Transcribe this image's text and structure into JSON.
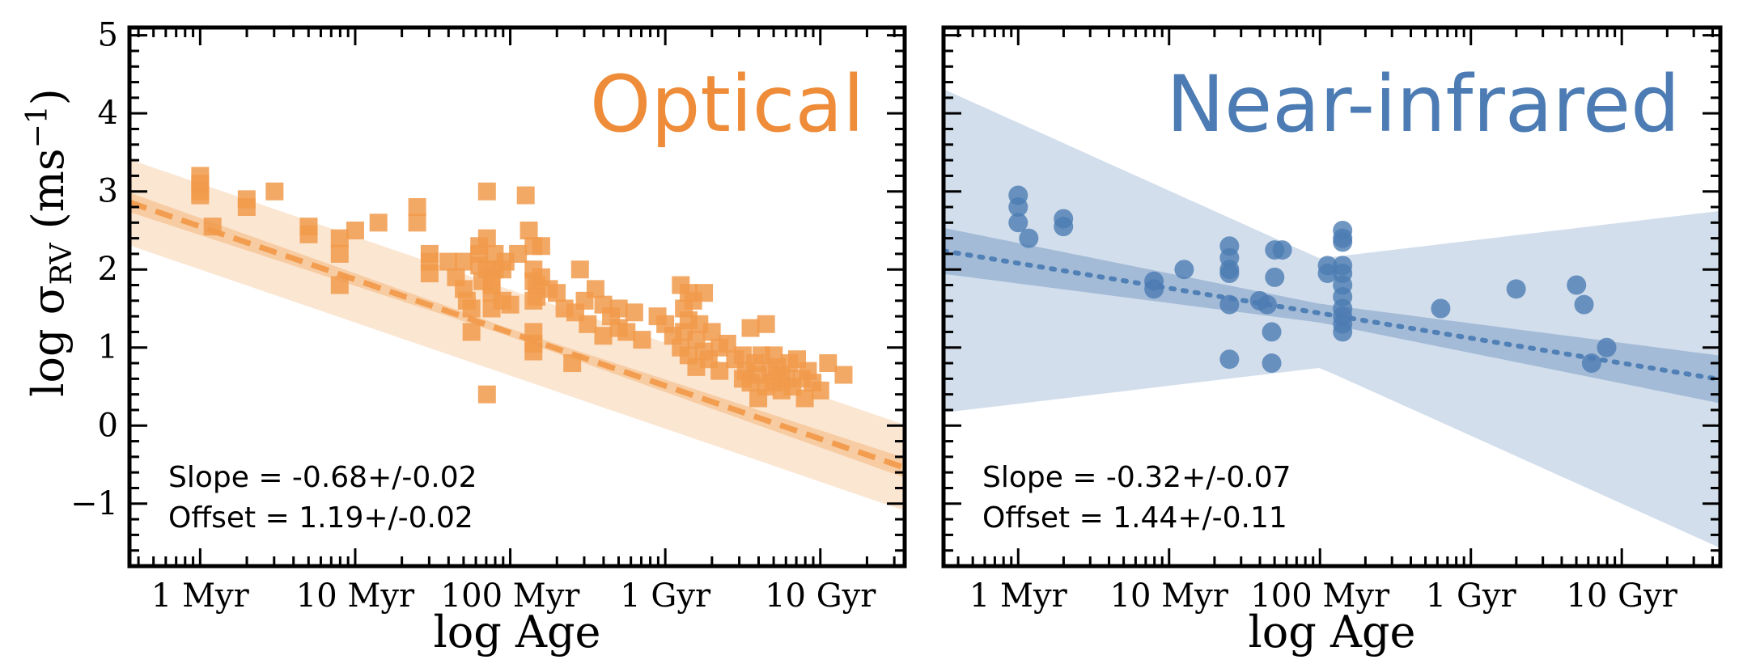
{
  "figure": {
    "ylabel_text": "log σ",
    "ylabel_sub": "RV",
    "ylabel_unit_open": " (ms",
    "ylabel_sup": "−1",
    "ylabel_unit_close": ")"
  },
  "chart_data": [
    {
      "type": "scatter",
      "title": "Optical",
      "title_color": "#EE8C3A",
      "xlabel": "log Age",
      "ylabel": "log σRV (ms−1)",
      "xscale": "log",
      "x_unit": "yr",
      "xlim": [
        350000,
        35000000000
      ],
      "ylim": [
        -1.8,
        5.1
      ],
      "x_ticks": [
        {
          "value": 1000000,
          "label": "1 Myr"
        },
        {
          "value": 10000000,
          "label": "10 Myr"
        },
        {
          "value": 100000000,
          "label": "100 Myr"
        },
        {
          "value": 1000000000,
          "label": "1 Gyr"
        },
        {
          "value": 10000000000,
          "label": "10 Gyr"
        }
      ],
      "y_ticks": [
        {
          "value": -1,
          "label": "−1"
        },
        {
          "value": 0,
          "label": "0"
        },
        {
          "value": 1,
          "label": "1"
        },
        {
          "value": 2,
          "label": "2"
        },
        {
          "value": 3,
          "label": "3"
        },
        {
          "value": 4,
          "label": "4"
        },
        {
          "value": 5,
          "label": "5"
        }
      ],
      "marker": "square",
      "color": "#F19A4B",
      "fit": {
        "slope": -0.68,
        "offset": 1.19,
        "linestyle": "dashed",
        "pivot_log_age": 8.0,
        "inner_band_halfwidth_at_pivot": 0.05,
        "inner_band_slope_spread": 0.03,
        "outer_band_halfwidth": 0.55
      },
      "annotation": {
        "slope_text": "Slope = -0.68+/-0.02",
        "offset_text": "Offset = 1.19+/-0.02"
      },
      "series": [
        {
          "x_log": [
            6.0,
            6.0,
            6.0,
            6.0,
            6.08,
            6.3,
            6.3,
            6.48,
            6.7,
            6.7,
            6.9,
            6.9,
            6.9,
            7.0,
            7.15,
            7.4,
            7.4,
            7.48,
            7.48,
            7.48,
            7.6,
            7.65,
            7.7,
            7.7,
            7.72,
            7.75,
            7.75,
            7.8,
            7.8,
            7.8,
            7.82,
            7.85,
            7.85,
            7.85,
            7.85,
            7.88,
            7.88,
            7.88,
            7.88,
            7.9,
            7.9,
            7.95,
            7.95,
            7.97,
            8.0,
            8.05,
            8.1,
            8.12,
            8.15,
            8.15,
            8.15,
            8.15,
            8.15,
            8.15,
            8.15,
            8.17,
            8.17,
            8.2,
            8.2,
            8.25,
            8.3,
            8.35,
            8.4,
            8.42,
            8.45,
            8.48,
            8.5,
            8.55,
            8.6,
            8.6,
            8.65,
            8.7,
            8.7,
            8.75,
            8.8,
            8.85,
            8.95,
            9.0,
            9.05,
            9.1,
            9.1,
            9.12,
            9.12,
            9.15,
            9.15,
            9.15,
            9.18,
            9.2,
            9.2,
            9.22,
            9.25,
            9.25,
            9.28,
            9.3,
            9.35,
            9.35,
            9.4,
            9.45,
            9.5,
            9.5,
            9.52,
            9.55,
            9.55,
            9.58,
            9.6,
            9.6,
            9.62,
            9.65,
            9.65,
            9.68,
            9.7,
            9.7,
            9.72,
            9.75,
            9.75,
            9.78,
            9.8,
            9.82,
            9.85,
            9.88,
            9.9,
            9.92,
            9.95,
            10.0,
            10.05,
            10.15
          ],
          "y": [
            3.2,
            3.1,
            3.0,
            2.95,
            2.55,
            2.9,
            2.8,
            3.0,
            2.55,
            2.45,
            2.4,
            2.2,
            1.8,
            2.5,
            2.6,
            2.8,
            2.6,
            2.2,
            2.1,
            1.95,
            2.1,
            1.9,
            2.1,
            1.75,
            1.6,
            1.5,
            1.2,
            2.2,
            2.3,
            2.05,
            1.85,
            3.0,
            2.4,
            2.0,
            0.4,
            1.9,
            1.8,
            1.7,
            1.5,
            2.2,
            2.0,
            2.0,
            1.6,
            2.1,
            1.55,
            2.2,
            2.95,
            2.5,
            2.3,
            2.0,
            1.85,
            1.6,
            1.2,
            0.95,
            1.05,
            1.8,
            1.65,
            2.3,
            1.9,
            1.75,
            1.7,
            1.5,
            0.8,
            1.45,
            2.0,
            1.6,
            1.3,
            1.75,
            1.15,
            1.55,
            1.4,
            1.5,
            1.25,
            1.2,
            1.45,
            1.1,
            1.4,
            1.3,
            1.15,
            1.8,
            1.0,
            1.5,
            1.2,
            1.7,
            1.35,
            0.9,
            1.6,
            1.1,
            0.75,
            1.3,
            1.7,
            0.95,
            0.85,
            1.2,
            1.0,
            0.7,
            1.05,
            0.85,
            0.6,
            0.9,
            0.7,
            1.25,
            0.55,
            0.8,
            0.35,
            0.65,
            0.9,
            1.3,
            0.5,
            0.7,
            0.55,
            0.9,
            0.75,
            0.45,
            0.65,
            0.6,
            0.8,
            0.5,
            0.85,
            0.6,
            0.35,
            0.7,
            0.55,
            0.45,
            0.8,
            0.65,
            0.6,
            0.75
          ]
        }
      ]
    },
    {
      "type": "scatter",
      "title": "Near-infrared",
      "title_color": "#4C7CB3",
      "xlabel": "log Age",
      "ylabel": "",
      "xscale": "log",
      "x_unit": "yr",
      "xlim": [
        320000,
        45000000000
      ],
      "ylim": [
        -1.8,
        5.1
      ],
      "x_ticks": [
        {
          "value": 1000000,
          "label": "1 Myr"
        },
        {
          "value": 10000000,
          "label": "10 Myr"
        },
        {
          "value": 100000000,
          "label": "100 Myr"
        },
        {
          "value": 1000000000,
          "label": "1 Gyr"
        },
        {
          "value": 10000000000,
          "label": "10 Gyr"
        }
      ],
      "y_ticks": [
        {
          "value": -1,
          "label": ""
        },
        {
          "value": 0,
          "label": ""
        },
        {
          "value": 1,
          "label": ""
        },
        {
          "value": 2,
          "label": ""
        },
        {
          "value": 3,
          "label": ""
        },
        {
          "value": 4,
          "label": ""
        },
        {
          "value": 5,
          "label": ""
        }
      ],
      "marker": "circle",
      "color": "#4C7CB3",
      "fit": {
        "slope": -0.32,
        "offset": 1.44,
        "linestyle": "dotted",
        "pivot_log_age": 8.0,
        "inner_band_halfwidth_at_pivot": 0.12,
        "inner_band_slope_spread": 0.07,
        "outer_band_halfwidth_at_pivot": 0.7,
        "outer_band_slope_spread": 0.55
      },
      "annotation": {
        "slope_text": "Slope = -0.32+/-0.07",
        "offset_text": "Offset = 1.44+/-0.11"
      },
      "series": [
        {
          "x_log": [
            6.0,
            6.0,
            6.0,
            6.07,
            6.3,
            6.3,
            6.9,
            6.9,
            7.1,
            7.4,
            7.4,
            7.4,
            7.4,
            7.4,
            7.4,
            7.6,
            7.65,
            7.68,
            7.68,
            7.7,
            7.7,
            7.75,
            8.05,
            8.05,
            8.15,
            8.15,
            8.15,
            8.15,
            8.15,
            8.15,
            8.15,
            8.15,
            8.15,
            8.15,
            8.15,
            8.8,
            9.3,
            9.7,
            9.75,
            9.8,
            9.9
          ],
          "y": [
            2.95,
            2.8,
            2.6,
            2.4,
            2.65,
            2.55,
            1.85,
            1.75,
            2.0,
            2.3,
            2.15,
            1.95,
            1.55,
            0.85,
            2.0,
            1.6,
            1.55,
            1.2,
            0.8,
            1.9,
            2.25,
            2.25,
            2.05,
            1.95,
            2.5,
            2.4,
            2.35,
            2.05,
            1.95,
            1.8,
            1.65,
            1.5,
            1.4,
            1.3,
            1.2,
            1.5,
            1.75,
            1.8,
            1.55,
            0.8,
            1.0
          ]
        }
      ]
    }
  ]
}
